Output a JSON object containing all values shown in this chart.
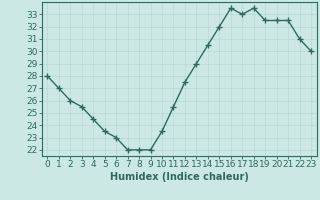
{
  "x": [
    0,
    1,
    2,
    3,
    4,
    5,
    6,
    7,
    8,
    9,
    10,
    11,
    12,
    13,
    14,
    15,
    16,
    17,
    18,
    19,
    20,
    21,
    22,
    23
  ],
  "y": [
    28,
    27,
    26,
    25.5,
    24.5,
    23.5,
    23,
    22,
    22,
    22,
    23.5,
    25.5,
    27.5,
    29,
    30.5,
    32,
    33.5,
    33,
    33.5,
    32.5,
    32.5,
    32.5,
    31,
    30
  ],
  "line_color": "#2d6b5e",
  "marker": "+",
  "markersize": 4,
  "linewidth": 1.0,
  "bg_color": "#cce8e4",
  "grid_color": "#b8d8d4",
  "tick_color": "#2d6b5e",
  "spine_color": "#2d6b5e",
  "xlabel": "Humidex (Indice chaleur)",
  "ylim": [
    21.5,
    34
  ],
  "yticks": [
    22,
    23,
    24,
    25,
    26,
    27,
    28,
    29,
    30,
    31,
    32,
    33
  ],
  "xlim": [
    -0.5,
    23.5
  ],
  "xlabel_fontsize": 7,
  "tick_fontsize": 6.5
}
